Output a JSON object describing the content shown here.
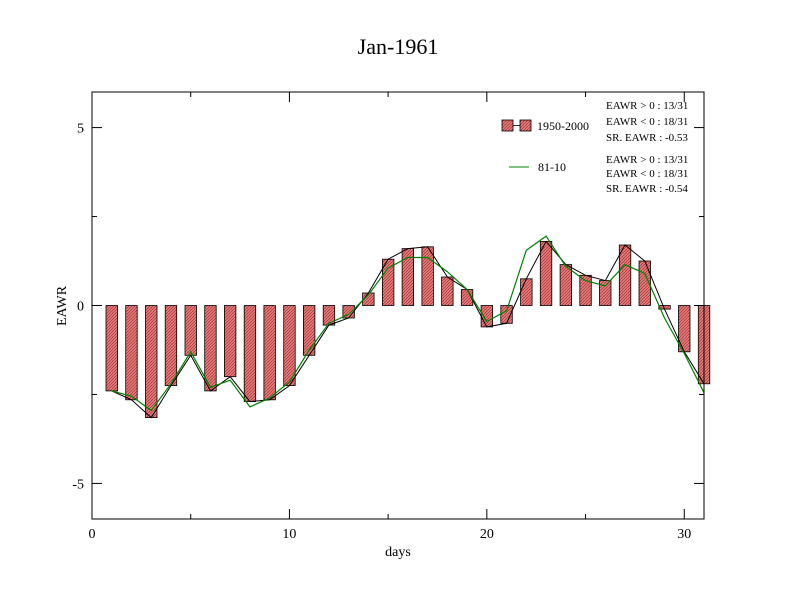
{
  "chart_data": {
    "type": "bar",
    "title": "Jan-1961",
    "xlabel": "days",
    "ylabel": "EAWR",
    "xlim": [
      0,
      31
    ],
    "ylim": [
      -6,
      6
    ],
    "xticks": [
      "0",
      "10",
      "20",
      "30"
    ],
    "yticks": [
      "5",
      "0",
      "-5"
    ],
    "grid": false,
    "legend_position": "top-right",
    "x": [
      1,
      2,
      3,
      4,
      5,
      6,
      7,
      8,
      9,
      10,
      11,
      12,
      13,
      14,
      15,
      16,
      17,
      18,
      19,
      20,
      21,
      22,
      23,
      24,
      25,
      26,
      27,
      28,
      29,
      30,
      31
    ],
    "series": [
      {
        "name": "1950-2000",
        "kind": "bar",
        "color": "#e87878",
        "values": [
          -2.4,
          -2.65,
          -3.15,
          -2.25,
          -1.4,
          -2.4,
          -2.0,
          -2.7,
          -2.65,
          -2.25,
          -1.4,
          -0.55,
          -0.35,
          0.35,
          1.3,
          1.6,
          1.65,
          0.8,
          0.45,
          -0.6,
          -0.5,
          0.75,
          1.8,
          1.15,
          0.85,
          0.7,
          1.7,
          1.25,
          -0.1,
          -1.3,
          -2.2
        ],
        "stats": [
          "EAWR > 0 : 13/31",
          "EAWR < 0 : 18/31",
          "SR. EAWR : -0.53"
        ]
      },
      {
        "name": "81-10",
        "kind": "line",
        "color": "#008000",
        "values": [
          -2.4,
          -2.55,
          -2.95,
          -2.2,
          -1.3,
          -2.3,
          -2.1,
          -2.85,
          -2.6,
          -2.15,
          -1.25,
          -0.5,
          -0.25,
          0.3,
          1.05,
          1.35,
          1.35,
          0.95,
          0.45,
          -0.45,
          -0.15,
          1.55,
          1.95,
          1.1,
          0.7,
          0.55,
          1.15,
          0.9,
          -0.35,
          -1.35,
          -2.45
        ],
        "stats": [
          "EAWR > 0 : 13/31",
          "EAWR < 0 : 18/31",
          "SR. EAWR : -0.54"
        ]
      }
    ]
  }
}
